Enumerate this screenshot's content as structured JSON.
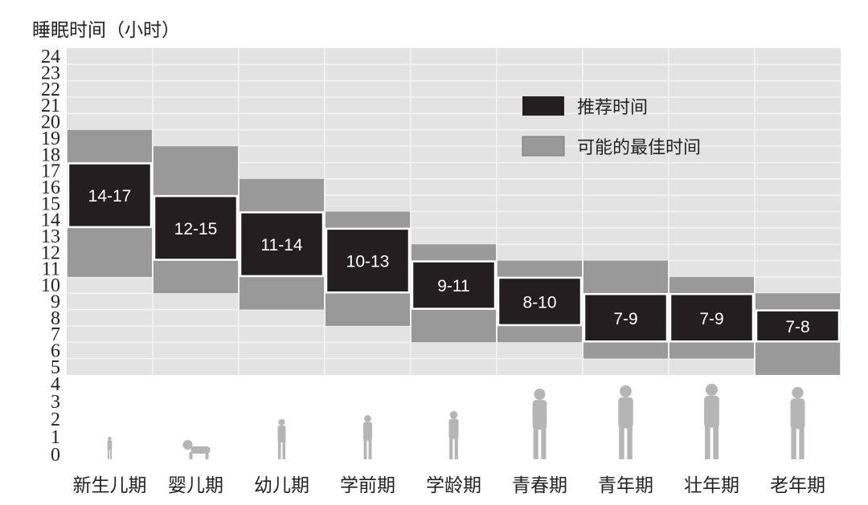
{
  "chart_data": {
    "type": "bar",
    "title": "",
    "ylabel": "睡眠时间（小时）",
    "xlabel": "",
    "ylim": [
      0,
      24
    ],
    "yticks": [
      0,
      1,
      2,
      3,
      4,
      5,
      6,
      7,
      8,
      9,
      10,
      11,
      12,
      13,
      14,
      15,
      16,
      17,
      18,
      19,
      20,
      21,
      22,
      23,
      24
    ],
    "grid": true,
    "legend_position": "top-right",
    "categories": [
      "新生儿期",
      "婴儿期",
      "幼儿期",
      "学前期",
      "学龄期",
      "青春期",
      "青年期",
      "壮年期",
      "老年期"
    ],
    "series": [
      {
        "name": "推荐时间",
        "color": "#231f20",
        "ranges": [
          [
            14,
            17
          ],
          [
            12,
            15
          ],
          [
            11,
            14
          ],
          [
            10,
            13
          ],
          [
            9,
            11
          ],
          [
            8,
            10
          ],
          [
            7,
            9
          ],
          [
            7,
            9
          ],
          [
            7,
            8
          ]
        ],
        "labels": [
          "14-17",
          "12-15",
          "11-14",
          "10-13",
          "9-11",
          "8-10",
          "7-9",
          "7-9",
          "7-8"
        ]
      },
      {
        "name": "可能的最佳时间",
        "color": "#999999",
        "ranges": [
          [
            11,
            19
          ],
          [
            10,
            18
          ],
          [
            9,
            16
          ],
          [
            8,
            14
          ],
          [
            7,
            12
          ],
          [
            7,
            11
          ],
          [
            6,
            11
          ],
          [
            6,
            10
          ],
          [
            5,
            9
          ]
        ]
      }
    ],
    "colors": {
      "plot_background": "#e3e3e3",
      "grid": "#f4f4f4",
      "silhouette": "#b5b5b5"
    },
    "icons": [
      "newborn-silhouette",
      "crawling-baby-silhouette",
      "toddler-silhouette",
      "preschooler-silhouette",
      "child-silhouette",
      "teen-silhouette",
      "young-woman-silhouette",
      "adult-woman-silhouette",
      "elderly-silhouette"
    ]
  }
}
